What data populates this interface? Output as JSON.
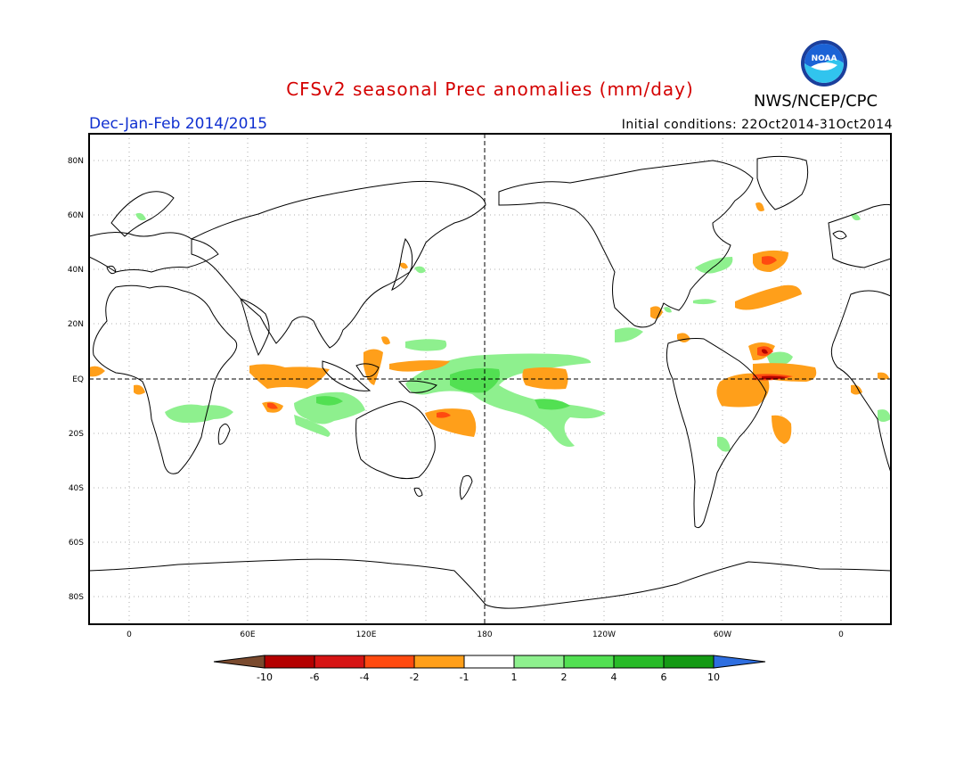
{
  "header": {
    "title": "CFSv2 seasonal Prec anomalies (mm/day)",
    "organization": "NWS/NCEP/CPC",
    "season": "Dec-Jan-Feb 2014/2015",
    "initial_conditions": "Initial conditions: 22Oct2014-31Oct2014"
  },
  "logo": {
    "text": "NOAA",
    "icon": "noaa-logo-icon"
  },
  "map": {
    "projection": "equirectangular",
    "center_longitude": 180,
    "lon_range": [
      -20,
      380
    ],
    "lat_range": [
      -90,
      90
    ],
    "grid": true,
    "lat_labels": [
      "80N",
      "60N",
      "40N",
      "20N",
      "EQ",
      "20S",
      "40S",
      "60S",
      "80S"
    ],
    "lon_labels": [
      "0",
      "60E",
      "120E",
      "180",
      "120W",
      "60W",
      "0"
    ]
  },
  "colorbar": {
    "labels": [
      "-10",
      "-6",
      "-4",
      "-2",
      "-1",
      "1",
      "2",
      "4",
      "6",
      "10"
    ],
    "colors": [
      "#7a4a2e",
      "#b40000",
      "#d61414",
      "#ff4a10",
      "#ff9f1a",
      "#ffffff",
      "#8ef08e",
      "#52e052",
      "#28bb28",
      "#149a14",
      "#2e6ee0"
    ]
  }
}
